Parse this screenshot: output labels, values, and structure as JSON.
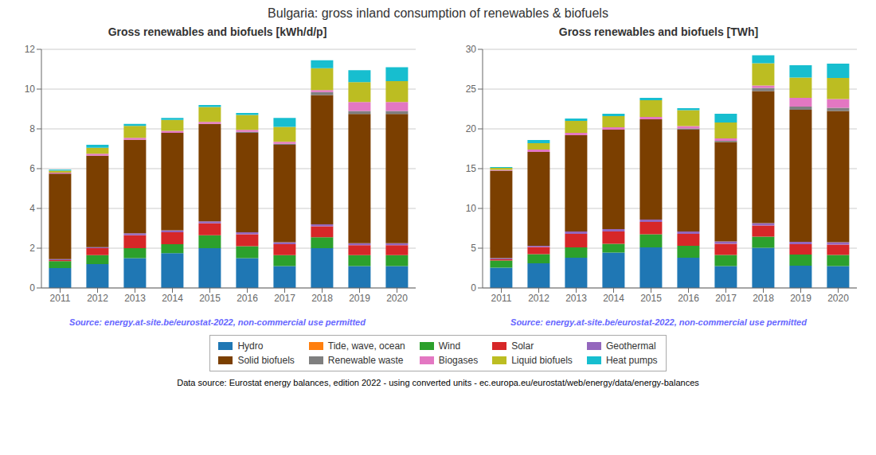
{
  "title": "Bulgaria: gross inland consumption of renewables & biofuels",
  "annotations": [
    "Data source: Eurostat energy balances, edition 2022 - using converted units - ec.europa.eu/eurostat/web/energy/data/energy-balances"
  ],
  "legend": "bottom",
  "chart_data": [
    {
      "type": "bar",
      "title": "Gross renewables and biofuels [kWh/d/p]",
      "annotations": [
        "Source: energy.at-site.be/eurostat-2022, non-commercial use permitted"
      ],
      "stacked": true,
      "grid": true,
      "categories": [
        "2011",
        "2012",
        "2013",
        "2014",
        "2015",
        "2016",
        "2017",
        "2018",
        "2019",
        "2020"
      ],
      "ylim": [
        0,
        12
      ],
      "yticks": [
        0,
        2,
        4,
        6,
        8,
        10,
        12
      ],
      "series": [
        {
          "name": "Hydro",
          "color": "#1f77b4",
          "values": [
            1.0,
            1.2,
            1.5,
            1.75,
            2.0,
            1.5,
            1.1,
            2.0,
            1.1,
            1.1
          ]
        },
        {
          "name": "Tide, wave, ocean",
          "color": "#ff7f0e",
          "values": [
            0.0,
            0.0,
            0.0,
            0.0,
            0.0,
            0.0,
            0.0,
            0.0,
            0.0,
            0.0
          ]
        },
        {
          "name": "Wind",
          "color": "#2ca02c",
          "values": [
            0.35,
            0.45,
            0.5,
            0.45,
            0.65,
            0.6,
            0.55,
            0.55,
            0.55,
            0.55
          ]
        },
        {
          "name": "Solar",
          "color": "#d62728",
          "values": [
            0.05,
            0.35,
            0.65,
            0.6,
            0.6,
            0.6,
            0.55,
            0.55,
            0.5,
            0.5
          ]
        },
        {
          "name": "Geothermal",
          "color": "#9467bd",
          "values": [
            0.05,
            0.05,
            0.1,
            0.1,
            0.1,
            0.1,
            0.1,
            0.1,
            0.1,
            0.1
          ]
        },
        {
          "name": "Solid biofuels",
          "color": "#7B3F00",
          "values": [
            4.3,
            4.6,
            4.7,
            4.9,
            4.9,
            5.0,
            4.9,
            6.5,
            6.5,
            6.5
          ]
        },
        {
          "name": "Renewable waste",
          "color": "#7f7f7f",
          "values": [
            0.0,
            0.0,
            0.0,
            0.0,
            0.0,
            0.05,
            0.05,
            0.15,
            0.15,
            0.15
          ]
        },
        {
          "name": "Biogases",
          "color": "#e377c2",
          "values": [
            0.05,
            0.1,
            0.1,
            0.1,
            0.1,
            0.1,
            0.1,
            0.1,
            0.45,
            0.45
          ]
        },
        {
          "name": "Liquid biofuels",
          "color": "#bcbd22",
          "values": [
            0.1,
            0.3,
            0.6,
            0.55,
            0.75,
            0.75,
            0.75,
            1.1,
            1.0,
            1.05
          ]
        },
        {
          "name": "Heat pumps",
          "color": "#17becf",
          "values": [
            0.05,
            0.15,
            0.1,
            0.1,
            0.1,
            0.1,
            0.45,
            0.4,
            0.6,
            0.7
          ]
        }
      ]
    },
    {
      "type": "bar",
      "title": "Gross renewables and biofuels [TWh]",
      "annotations": [
        "Source: energy.at-site.be/eurostat-2022, non-commercial use permitted"
      ],
      "stacked": true,
      "grid": true,
      "categories": [
        "2011",
        "2012",
        "2013",
        "2014",
        "2015",
        "2016",
        "2017",
        "2018",
        "2019",
        "2020"
      ],
      "ylim": [
        0,
        30
      ],
      "yticks": [
        0,
        5,
        10,
        15,
        20,
        25,
        30
      ],
      "series": [
        {
          "name": "Hydro",
          "color": "#1f77b4",
          "values": [
            2.55,
            3.1,
            3.8,
            4.45,
            5.1,
            3.8,
            2.75,
            5.05,
            2.8,
            2.75
          ]
        },
        {
          "name": "Tide, wave, ocean",
          "color": "#ff7f0e",
          "values": [
            0.0,
            0.0,
            0.0,
            0.0,
            0.0,
            0.0,
            0.0,
            0.0,
            0.0,
            0.0
          ]
        },
        {
          "name": "Wind",
          "color": "#2ca02c",
          "values": [
            0.9,
            1.15,
            1.3,
            1.1,
            1.65,
            1.5,
            1.4,
            1.4,
            1.4,
            1.4
          ]
        },
        {
          "name": "Solar",
          "color": "#d62728",
          "values": [
            0.15,
            0.9,
            1.7,
            1.55,
            1.55,
            1.5,
            1.4,
            1.4,
            1.3,
            1.3
          ]
        },
        {
          "name": "Geothermal",
          "color": "#9467bd",
          "values": [
            0.15,
            0.15,
            0.3,
            0.3,
            0.3,
            0.3,
            0.3,
            0.3,
            0.3,
            0.3
          ]
        },
        {
          "name": "Solid biofuels",
          "color": "#7B3F00",
          "values": [
            11.0,
            11.8,
            12.1,
            12.5,
            12.6,
            12.8,
            12.5,
            16.6,
            16.6,
            16.5
          ]
        },
        {
          "name": "Renewable waste",
          "color": "#7f7f7f",
          "values": [
            0.0,
            0.0,
            0.0,
            0.0,
            0.0,
            0.15,
            0.15,
            0.4,
            0.4,
            0.4
          ]
        },
        {
          "name": "Biogases",
          "color": "#e377c2",
          "values": [
            0.1,
            0.3,
            0.3,
            0.3,
            0.3,
            0.3,
            0.3,
            0.3,
            1.1,
            1.1
          ]
        },
        {
          "name": "Liquid biofuels",
          "color": "#bcbd22",
          "values": [
            0.25,
            0.8,
            1.5,
            1.4,
            2.1,
            2.0,
            2.0,
            2.8,
            2.55,
            2.65
          ]
        },
        {
          "name": "Heat pumps",
          "color": "#17becf",
          "values": [
            0.1,
            0.4,
            0.3,
            0.3,
            0.3,
            0.25,
            1.1,
            1.0,
            1.55,
            1.8
          ]
        }
      ]
    }
  ]
}
